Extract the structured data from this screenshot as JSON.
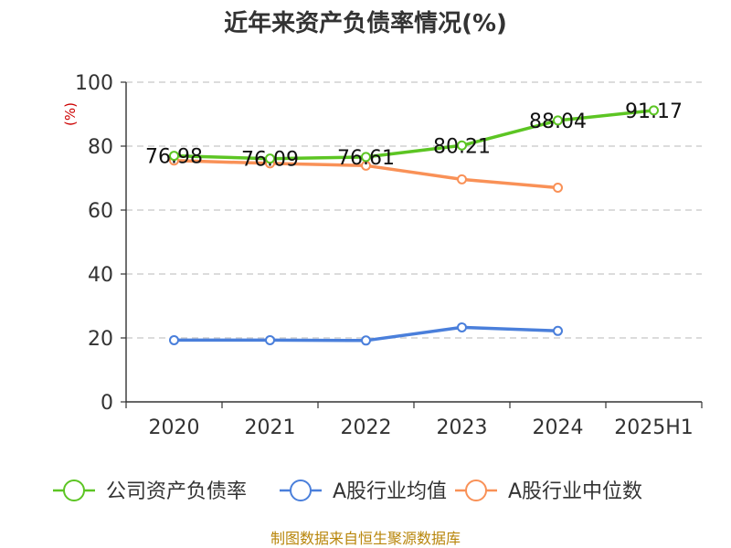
{
  "chart_data": {
    "type": "line",
    "title": "近年来资产负债率情况(%)",
    "unit_label": "(%)",
    "categories": [
      "2020",
      "2021",
      "2022",
      "2023",
      "2024",
      "2025H1"
    ],
    "ylim": [
      0,
      100
    ],
    "yticks": [
      0,
      20,
      40,
      60,
      80,
      100
    ],
    "grid": true,
    "legend_position": "bottom",
    "series": [
      {
        "name": "公司资产负债率",
        "color": "#5cc523",
        "values": [
          76.98,
          76.09,
          76.61,
          80.21,
          88.04,
          91.17
        ],
        "labels": [
          "76.98",
          "76.09",
          "76.61",
          "80.21",
          "88.04",
          "91.17"
        ]
      },
      {
        "name": "A股行业均值",
        "color": "#4a7fdb",
        "values": [
          19.3,
          19.3,
          19.2,
          23.3,
          22.2,
          null
        ]
      },
      {
        "name": "A股行业中位数",
        "color": "#f99157",
        "values": [
          75.5,
          74.6,
          73.9,
          69.6,
          67.0,
          null
        ]
      }
    ],
    "source": "制图数据来自恒生聚源数据库"
  }
}
